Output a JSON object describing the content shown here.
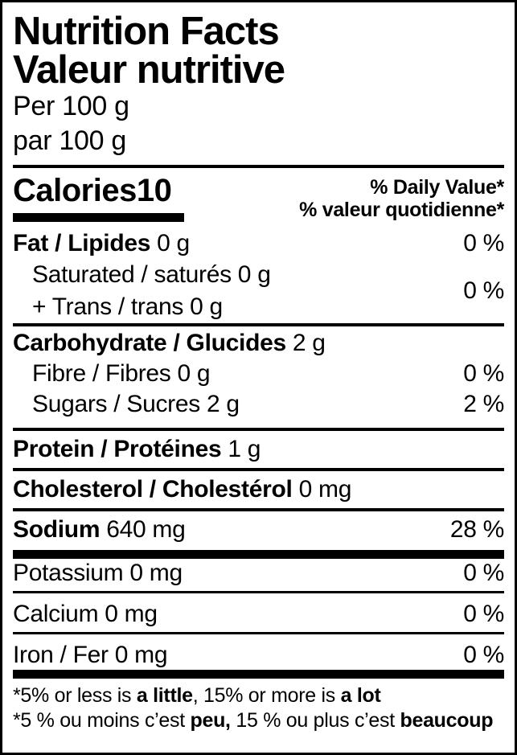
{
  "title": {
    "en": "Nutrition Facts",
    "fr": "Valeur nutritive"
  },
  "serving": {
    "en": "Per 100 g",
    "fr": "par 100 g"
  },
  "calories": {
    "label": "Calories",
    "value": "10"
  },
  "daily_value_header": {
    "en": "% Daily Value*",
    "fr": "% valeur quotidienne*"
  },
  "nutrients": {
    "fat": {
      "name": "Fat / Lipides",
      "amount": "0 g",
      "dv": "0 %"
    },
    "saturated_trans": {
      "line1": "Saturated / saturés 0 g",
      "line2": "+ Trans / trans 0 g",
      "dv": "0 %"
    },
    "carbohydrate": {
      "name": "Carbohydrate / Glucides",
      "amount": "2 g"
    },
    "fibre": {
      "name": "Fibre / Fibres",
      "amount": "0 g",
      "dv": "0 %"
    },
    "sugars": {
      "name": "Sugars / Sucres",
      "amount": "2 g",
      "dv": "2 %"
    },
    "protein": {
      "name": "Protein / Protéines",
      "amount": "1 g"
    },
    "cholesterol": {
      "name": "Cholesterol / Cholestérol",
      "amount": "0 mg"
    },
    "sodium": {
      "name": "Sodium",
      "amount": "640 mg",
      "dv": "28 %"
    },
    "potassium": {
      "name": "Potassium",
      "amount": "0 mg",
      "dv": "0 %"
    },
    "calcium": {
      "name": "Calcium",
      "amount": "0 mg",
      "dv": "0 %"
    },
    "iron": {
      "name": "Iron / Fer",
      "amount": "0 mg",
      "dv": "0 %"
    }
  },
  "footnote": {
    "en": {
      "pre": "*5% or less is ",
      "bold1": "a little",
      "mid": ", 15% or more is ",
      "bold2": "a lot"
    },
    "fr": {
      "pre": "*5 % ou moins c’est ",
      "bold1": "peu,",
      "mid": " 15 % ou plus c’est ",
      "bold2": "beaucoup"
    }
  },
  "colors": {
    "text": "#000000",
    "background": "#ffffff",
    "border": "#000000"
  }
}
